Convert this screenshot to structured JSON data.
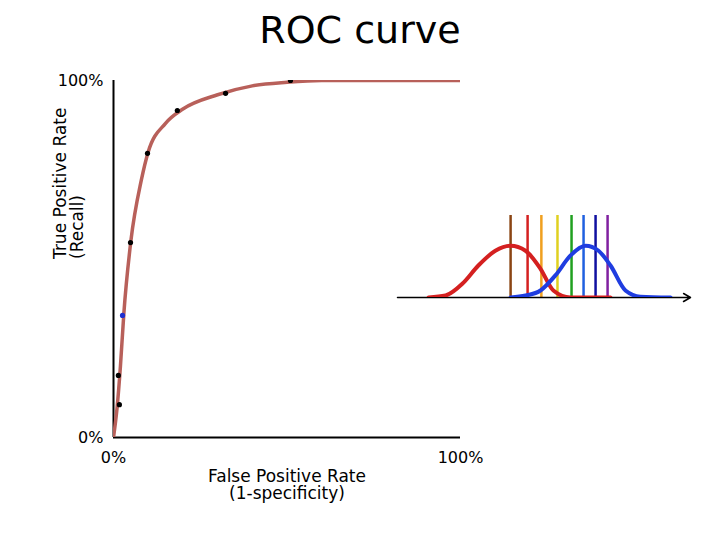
{
  "chart_data": [
    {
      "type": "line",
      "title": "ROC curve",
      "x_label": "False Positive Rate\n(1-specificity)",
      "y_label": "True Positive Rate\n(Recall)",
      "xlim": [
        0,
        100
      ],
      "ylim": [
        0,
        100
      ],
      "xticks": [
        {
          "value": 0,
          "label": "0%"
        },
        {
          "value": 100,
          "label": "100%"
        }
      ],
      "yticks": [
        {
          "value": 0,
          "label": "0%"
        },
        {
          "value": 100,
          "label": "100%"
        }
      ],
      "series": [
        {
          "type": "line",
          "color": "#b8605a",
          "x": [
            0,
            1,
            2,
            3,
            5,
            8,
            10,
            15,
            20,
            30,
            40,
            50,
            60,
            100
          ],
          "values": [
            0,
            8,
            20,
            35,
            55,
            72,
            80,
            88,
            92,
            96,
            98.5,
            99.5,
            100,
            100
          ]
        },
        {
          "type": "scatter",
          "x": [
            1.7,
            1.4,
            2.6,
            4.9,
            9.8,
            18.4,
            32.3,
            51.0
          ],
          "values": [
            9.2,
            17.4,
            34.2,
            54.6,
            79.6,
            91.6,
            96.4,
            100
          ],
          "colors": [
            "#000000",
            "#000000",
            "#2030d0",
            "#000000",
            "#000000",
            "#000000",
            "#000000",
            "#000000"
          ]
        }
      ]
    },
    {
      "type": "line",
      "tick_labels": false,
      "xlim": [
        0,
        100
      ],
      "ylim": [
        0,
        100
      ],
      "xticks": [],
      "yticks": [],
      "series": [
        {
          "color": "#d42020",
          "x": [
            10.6,
            16.4,
            22.2,
            27.6,
            33.4,
            38.6,
            43.7,
            48.8,
            53.2,
            59.0,
            72.7
          ],
          "values": [
            0,
            2.4,
            17,
            39,
            57,
            63,
            57,
            35,
            8.5,
            0,
            0
          ]
        },
        {
          "color": "#1f3de0",
          "x": [
            38.6,
            43.7,
            48.8,
            53.9,
            59.0,
            64.2,
            68.6,
            72.7,
            77.8,
            82.9,
            93.2
          ],
          "values": [
            0,
            2.4,
            8.5,
            27,
            51,
            63,
            57,
            39,
            8.5,
            1,
            0
          ]
        }
      ],
      "thresholds": {
        "x": [
          38.6,
          44.4,
          49.1,
          54.6,
          59.4,
          63.5,
          67.6,
          71.7
        ],
        "colors": [
          "#8b4513",
          "#d42020",
          "#f0a020",
          "#e0d020",
          "#20a020",
          "#2060e0",
          "#1010a0",
          "#8020a0"
        ]
      }
    }
  ]
}
